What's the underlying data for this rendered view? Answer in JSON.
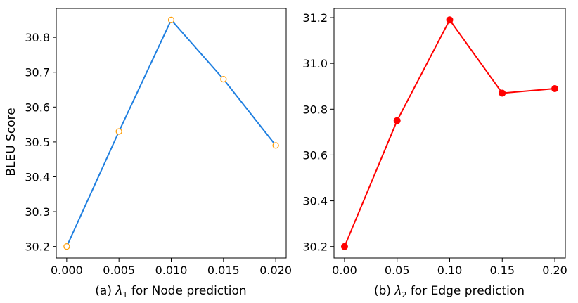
{
  "chart_data": [
    {
      "type": "line",
      "ylabel": "BLEU Score",
      "xlabel_prefix": "(a) ",
      "xlabel_symbol": "λ",
      "xlabel_sub": "1",
      "xlabel_suffix": " for Node prediction",
      "x": [
        0.0,
        0.005,
        0.01,
        0.015,
        0.02
      ],
      "x_ticks": [
        0.0,
        0.005,
        0.01,
        0.015,
        0.02
      ],
      "x_tick_labels": [
        "0.000",
        "0.005",
        "0.010",
        "0.015",
        "0.020"
      ],
      "xlim": [
        -0.001,
        0.021
      ],
      "y_ticks": [
        30.2,
        30.3,
        30.4,
        30.5,
        30.6,
        30.7,
        30.8
      ],
      "y_tick_labels": [
        "30.2",
        "30.3",
        "30.4",
        "30.5",
        "30.6",
        "30.7",
        "30.8"
      ],
      "ylim": [
        30.167,
        30.883
      ],
      "series": [
        {
          "values": [
            30.2,
            30.53,
            30.85,
            30.68,
            30.49
          ],
          "line_color": "#1f7fe0",
          "marker": "hollow-circle",
          "marker_color": "#ff9f0a"
        }
      ]
    },
    {
      "type": "line",
      "ylabel": "",
      "xlabel_prefix": "(b) ",
      "xlabel_symbol": "λ",
      "xlabel_sub": "2",
      "xlabel_suffix": " for Edge prediction",
      "x": [
        0.0,
        0.05,
        0.1,
        0.15,
        0.2
      ],
      "x_ticks": [
        0.0,
        0.05,
        0.1,
        0.15,
        0.2
      ],
      "x_tick_labels": [
        "0.00",
        "0.05",
        "0.10",
        "0.15",
        "0.20"
      ],
      "xlim": [
        -0.01,
        0.21
      ],
      "y_ticks": [
        30.2,
        30.4,
        30.6,
        30.8,
        31.0,
        31.2
      ],
      "y_tick_labels": [
        "30.2",
        "30.4",
        "30.6",
        "30.8",
        "31.0",
        "31.2"
      ],
      "ylim": [
        30.15,
        31.24
      ],
      "series": [
        {
          "values": [
            30.2,
            30.75,
            31.19,
            30.87,
            30.89
          ],
          "line_color": "#ff0000",
          "marker": "filled-circle",
          "marker_color": "#ff0000"
        }
      ]
    }
  ]
}
